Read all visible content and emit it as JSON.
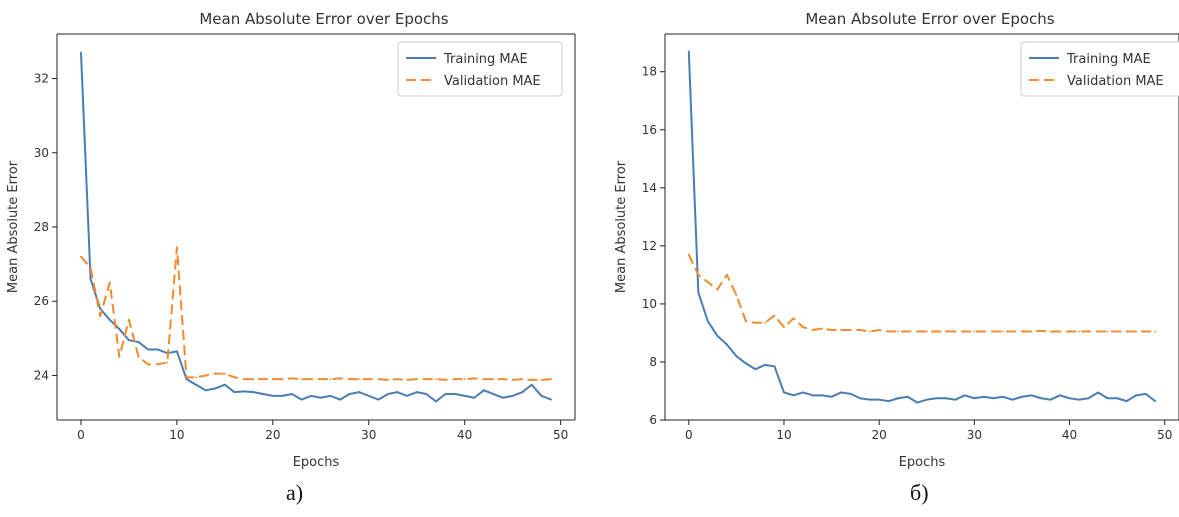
{
  "colors": {
    "training": "#4a7db3",
    "validation": "#f28a30",
    "axis": "#222222",
    "text": "#333333"
  },
  "captions": [
    "а)",
    "б)"
  ],
  "chart_data": [
    {
      "type": "line",
      "title": "Mean Absolute Error over Epochs",
      "xlabel": "Epochs",
      "ylabel": "Mean Absolute Error",
      "xlim": [
        -2.5,
        51.5
      ],
      "ylim": [
        22.8,
        33.2
      ],
      "xticks": [
        0,
        10,
        20,
        30,
        40,
        50
      ],
      "yticks": [
        24,
        26,
        28,
        30,
        32
      ],
      "legend": "top-right",
      "grid": false,
      "x": [
        0,
        1,
        2,
        3,
        4,
        5,
        6,
        7,
        8,
        9,
        10,
        11,
        12,
        13,
        14,
        15,
        16,
        17,
        18,
        19,
        20,
        21,
        22,
        23,
        24,
        25,
        26,
        27,
        28,
        29,
        30,
        31,
        32,
        33,
        34,
        35,
        36,
        37,
        38,
        39,
        40,
        41,
        42,
        43,
        44,
        45,
        46,
        47,
        48,
        49
      ],
      "series": [
        {
          "name": "Training MAE",
          "style": "solid",
          "values": [
            32.7,
            26.6,
            25.8,
            25.5,
            25.25,
            24.95,
            24.9,
            24.7,
            24.7,
            24.6,
            24.65,
            23.9,
            23.75,
            23.6,
            23.65,
            23.75,
            23.55,
            23.57,
            23.55,
            23.5,
            23.45,
            23.45,
            23.5,
            23.35,
            23.45,
            23.4,
            23.45,
            23.35,
            23.5,
            23.55,
            23.45,
            23.35,
            23.5,
            23.55,
            23.45,
            23.55,
            23.5,
            23.3,
            23.5,
            23.5,
            23.45,
            23.4,
            23.6,
            23.5,
            23.4,
            23.45,
            23.55,
            23.75,
            23.45,
            23.35
          ]
        },
        {
          "name": "Validation MAE",
          "style": "dashed",
          "values": [
            27.2,
            26.9,
            25.6,
            26.5,
            24.5,
            25.5,
            24.5,
            24.3,
            24.3,
            24.35,
            27.45,
            23.95,
            23.95,
            24.0,
            24.05,
            24.05,
            23.95,
            23.9,
            23.9,
            23.9,
            23.9,
            23.9,
            23.92,
            23.9,
            23.9,
            23.9,
            23.9,
            23.92,
            23.9,
            23.9,
            23.9,
            23.9,
            23.88,
            23.9,
            23.88,
            23.9,
            23.9,
            23.9,
            23.88,
            23.9,
            23.9,
            23.92,
            23.9,
            23.9,
            23.9,
            23.88,
            23.9,
            23.88,
            23.88,
            23.9
          ]
        }
      ]
    },
    {
      "type": "line",
      "title": "Mean Absolute Error over Epochs",
      "xlabel": "Epochs",
      "ylabel": "Mean Absolute Error",
      "xlim": [
        -2.5,
        51.5
      ],
      "ylim": [
        6.0,
        19.3
      ],
      "xticks": [
        0,
        10,
        20,
        30,
        40,
        50
      ],
      "yticks": [
        6,
        8,
        10,
        12,
        14,
        16,
        18
      ],
      "legend": "top-right",
      "grid": false,
      "x": [
        0,
        1,
        2,
        3,
        4,
        5,
        6,
        7,
        8,
        9,
        10,
        11,
        12,
        13,
        14,
        15,
        16,
        17,
        18,
        19,
        20,
        21,
        22,
        23,
        24,
        25,
        26,
        27,
        28,
        29,
        30,
        31,
        32,
        33,
        34,
        35,
        36,
        37,
        38,
        39,
        40,
        41,
        42,
        43,
        44,
        45,
        46,
        47,
        48,
        49
      ],
      "series": [
        {
          "name": "Training MAE",
          "style": "solid",
          "values": [
            18.7,
            10.4,
            9.4,
            8.9,
            8.6,
            8.2,
            7.95,
            7.75,
            7.9,
            7.85,
            6.95,
            6.85,
            6.95,
            6.85,
            6.85,
            6.8,
            6.95,
            6.9,
            6.75,
            6.7,
            6.7,
            6.65,
            6.75,
            6.8,
            6.6,
            6.7,
            6.75,
            6.75,
            6.7,
            6.85,
            6.75,
            6.8,
            6.75,
            6.8,
            6.7,
            6.8,
            6.85,
            6.75,
            6.7,
            6.85,
            6.75,
            6.7,
            6.75,
            6.95,
            6.75,
            6.75,
            6.65,
            6.85,
            6.9,
            6.65
          ]
        },
        {
          "name": "Validation MAE",
          "style": "dashed",
          "values": [
            11.7,
            11.0,
            10.75,
            10.5,
            11.0,
            10.3,
            9.4,
            9.35,
            9.35,
            9.6,
            9.2,
            9.5,
            9.2,
            9.1,
            9.15,
            9.1,
            9.1,
            9.1,
            9.1,
            9.05,
            9.1,
            9.05,
            9.05,
            9.05,
            9.05,
            9.05,
            9.05,
            9.05,
            9.05,
            9.05,
            9.05,
            9.05,
            9.05,
            9.05,
            9.05,
            9.05,
            9.05,
            9.07,
            9.05,
            9.05,
            9.05,
            9.05,
            9.05,
            9.05,
            9.05,
            9.05,
            9.05,
            9.05,
            9.05,
            9.05
          ]
        }
      ]
    }
  ]
}
